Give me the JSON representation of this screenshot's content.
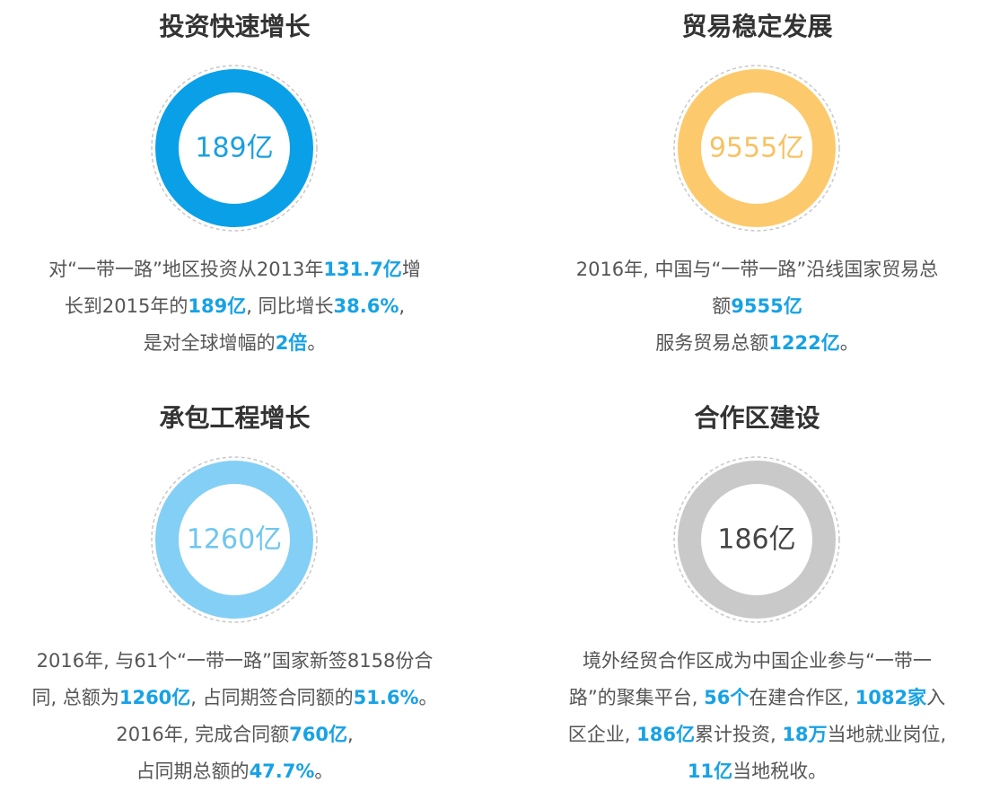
{
  "panels": [
    {
      "title": "投资快速增长",
      "ring_label": "189亿",
      "ring_color": "#0aa0e8",
      "label_color": "#1a9fe0",
      "lines": [
        [
          {
            "text": "对“一带一路”地区投资从2013年"
          },
          {
            "text": "131.7亿",
            "highlight": true
          },
          {
            "text": "增"
          }
        ],
        [
          {
            "text": "长到2015年的"
          },
          {
            "text": "189亿",
            "highlight": true
          },
          {
            "text": ", 同比增长"
          },
          {
            "text": "38.6%",
            "highlight": true
          },
          {
            "text": ","
          }
        ],
        [
          {
            "text": "是对全球增幅的"
          },
          {
            "text": "2倍",
            "highlight": true
          },
          {
            "text": "。"
          }
        ]
      ]
    },
    {
      "title": "贸易稳定发展",
      "ring_label": "9555亿",
      "ring_color": "#fcca6c",
      "label_color": "#f7c263",
      "lines": [
        [
          {
            "text": "2016年, 中国与“一带一路”沿线国家贸易总"
          }
        ],
        [
          {
            "text": "额"
          },
          {
            "text": "9555亿",
            "highlight": true
          }
        ],
        [
          {
            "text": "服务贸易总额"
          },
          {
            "text": "1222亿",
            "highlight": true
          },
          {
            "text": "。"
          }
        ]
      ]
    },
    {
      "title": "承包工程增长",
      "ring_label": "1260亿",
      "ring_color": "#84cff5",
      "label_color": "#6ec6ef",
      "lines": [
        [
          {
            "text": "2016年, 与61个“一带一路”国家新签8158份合"
          }
        ],
        [
          {
            "text": "同, 总额为"
          },
          {
            "text": "1260亿",
            "highlight": true
          },
          {
            "text": ", 占同期签合同额的"
          },
          {
            "text": "51.6%",
            "highlight": true
          },
          {
            "text": "。"
          }
        ],
        [
          {
            "text": "2016年, 完成合同额"
          },
          {
            "text": "760亿",
            "highlight": true
          },
          {
            "text": ","
          }
        ],
        [
          {
            "text": "占同期总额的"
          },
          {
            "text": "47.7%",
            "highlight": true
          },
          {
            "text": "。"
          }
        ]
      ]
    },
    {
      "title": "合作区建设",
      "ring_label": "186亿",
      "ring_color": "#c9c9c9",
      "label_color": "#444444",
      "lines": [
        [
          {
            "text": "境外经贸合作区成为中国企业参与“一带一"
          }
        ],
        [
          {
            "text": "路”的聚集平台, "
          },
          {
            "text": "56个",
            "highlight": true
          },
          {
            "text": "在建合作区, "
          },
          {
            "text": "1082家",
            "highlight": true
          },
          {
            "text": "入"
          }
        ],
        [
          {
            "text": "区企业, "
          },
          {
            "text": "186亿",
            "highlight": true
          },
          {
            "text": "累计投资, "
          },
          {
            "text": "18万",
            "highlight": true
          },
          {
            "text": "当地就业岗位,"
          }
        ],
        [
          {
            "text": "11亿",
            "highlight": true
          },
          {
            "text": "当地税收。"
          }
        ]
      ]
    }
  ]
}
